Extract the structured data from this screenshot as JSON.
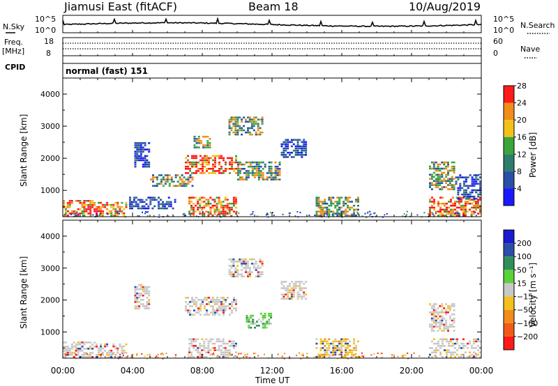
{
  "header": {
    "station": "Jiamusi East (fitACF)",
    "beam": "Beam 18",
    "date": "10/Aug/2019"
  },
  "strips": {
    "noise_label_left": "N.Sky",
    "noise_label_right": "N.Search",
    "noise_ticks": [
      "10^5",
      "10^0"
    ],
    "freq_label_left": [
      "Freq.",
      "[MHz]"
    ],
    "freq_ticks_left": [
      "18",
      "8"
    ],
    "freq_ticks_right": [
      "60",
      "0"
    ],
    "nave_label": "Nave",
    "cpid_label": "CPID",
    "cpid_value": "normal (fast) 151"
  },
  "axes": {
    "ylabel": "Slant Range [km]",
    "yticks": [
      "1000",
      "2000",
      "3000",
      "4000"
    ],
    "xticks": [
      "00:00",
      "04:00",
      "08:00",
      "12:00",
      "16:00",
      "20:00",
      "00:00"
    ],
    "xlabel": "Time UT"
  },
  "chart_data": [
    {
      "type": "heatmap",
      "panel": "power",
      "x": [
        0,
        24
      ],
      "xunit": "hours UT",
      "ylim": [
        180,
        4500
      ],
      "colorbar": {
        "label": "Power [dB]",
        "ticks": [
          "4",
          "8",
          "12",
          "16",
          "20",
          "24",
          "28"
        ],
        "range": [
          0,
          30
        ]
      },
      "colors": [
        "#1a1aff",
        "#2a4fa6",
        "#2e7d6b",
        "#3aa63a",
        "#f2c21a",
        "#f28c1a",
        "#ff1a1a"
      ],
      "regions": [
        {
          "t": [
            0,
            2.0
          ],
          "r": [
            180,
            700
          ],
          "level": "high"
        },
        {
          "t": [
            2.0,
            3.7
          ],
          "r": [
            180,
            640
          ],
          "level": "high"
        },
        {
          "t": [
            3.8,
            6.5
          ],
          "r": [
            400,
            800
          ],
          "level": "low"
        },
        {
          "t": [
            4.1,
            5.0
          ],
          "r": [
            1700,
            2500
          ],
          "level": "low"
        },
        {
          "t": [
            5.0,
            7.5
          ],
          "r": [
            1100,
            1500
          ],
          "level": "mid"
        },
        {
          "t": [
            7.0,
            10.0
          ],
          "r": [
            1500,
            2100
          ],
          "level": "high"
        },
        {
          "t": [
            7.2,
            10.0
          ],
          "r": [
            180,
            800
          ],
          "level": "high"
        },
        {
          "t": [
            7.5,
            8.5
          ],
          "r": [
            2300,
            2700
          ],
          "level": "mid"
        },
        {
          "t": [
            9.5,
            11.5
          ],
          "r": [
            2700,
            3300
          ],
          "level": "mid"
        },
        {
          "t": [
            10.0,
            12.5
          ],
          "r": [
            1300,
            1900
          ],
          "level": "mid"
        },
        {
          "t": [
            12.5,
            14.0
          ],
          "r": [
            2000,
            2600
          ],
          "level": "low"
        },
        {
          "t": [
            14.5,
            17.0
          ],
          "r": [
            180,
            800
          ],
          "level": "mid"
        },
        {
          "t": [
            21.0,
            24.0
          ],
          "r": [
            180,
            800
          ],
          "level": "high"
        },
        {
          "t": [
            21.0,
            22.5
          ],
          "r": [
            1000,
            1900
          ],
          "level": "mid"
        },
        {
          "t": [
            22.5,
            24.0
          ],
          "r": [
            700,
            1500
          ],
          "level": "low"
        }
      ]
    },
    {
      "type": "heatmap",
      "panel": "velocity",
      "x": [
        0,
        24
      ],
      "xunit": "hours UT",
      "ylim": [
        180,
        4500
      ],
      "colorbar": {
        "label": "Velocity [m s⁻¹]",
        "ticks": [
          "200",
          "100",
          "50",
          "15",
          "-15",
          "-50",
          "-100",
          "-200"
        ],
        "range": [
          -250,
          250
        ]
      },
      "colors": [
        "#ff1a1a",
        "#f25a1a",
        "#f28c1a",
        "#f2c21a",
        "#c8c8c8",
        "#5ad23a",
        "#2e8f5a",
        "#2a4fa6",
        "#1a1ad2"
      ],
      "regions": [
        {
          "t": [
            0,
            2.0
          ],
          "r": [
            180,
            700
          ],
          "level": "ground"
        },
        {
          "t": [
            2.0,
            3.7
          ],
          "r": [
            180,
            640
          ],
          "level": "ground"
        },
        {
          "t": [
            4.1,
            5.0
          ],
          "r": [
            1700,
            2500
          ],
          "level": "ground"
        },
        {
          "t": [
            7.0,
            10.0
          ],
          "r": [
            1500,
            2100
          ],
          "level": "ground"
        },
        {
          "t": [
            7.2,
            10.0
          ],
          "r": [
            180,
            800
          ],
          "level": "ground"
        },
        {
          "t": [
            9.5,
            11.5
          ],
          "r": [
            2700,
            3300
          ],
          "level": "ground"
        },
        {
          "t": [
            10.5,
            12.0
          ],
          "r": [
            1100,
            1600
          ],
          "level": "positive"
        },
        {
          "t": [
            12.5,
            14.0
          ],
          "r": [
            2000,
            2600
          ],
          "level": "ground"
        },
        {
          "t": [
            14.5,
            17.0
          ],
          "r": [
            180,
            800
          ],
          "level": "mixed"
        },
        {
          "t": [
            21.0,
            24.0
          ],
          "r": [
            180,
            800
          ],
          "level": "ground"
        },
        {
          "t": [
            21.0,
            22.5
          ],
          "r": [
            1000,
            1900
          ],
          "level": "ground"
        }
      ]
    }
  ]
}
